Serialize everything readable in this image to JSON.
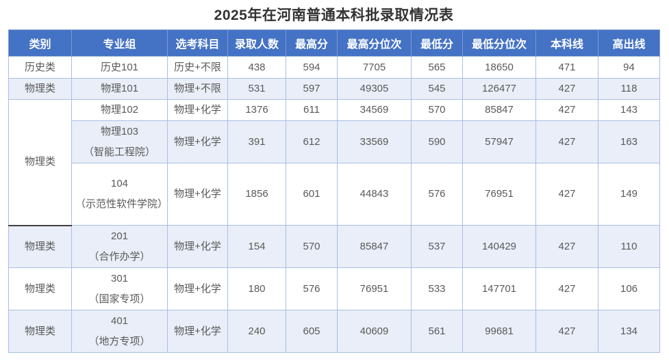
{
  "title": "2025年在河南普通本科批录取情况表",
  "colors": {
    "header_bg": "#4472C4",
    "header_text": "#FFFFFF",
    "row_alt_bg": "#E9EEF8",
    "grid_border": "#A9BEE4",
    "outer_border": "#8AA5D6",
    "body_text": "#595959",
    "title_text": "#333333",
    "merged_cell_divider": "#404040"
  },
  "table": {
    "columns": [
      "类别",
      "专业组",
      "选考科目",
      "录取人数",
      "最高分",
      "最高分位次",
      "最低分",
      "最低分位次",
      "本科线",
      "高出线"
    ],
    "rows": [
      {
        "category": "历史类",
        "category_rowspan": 1,
        "group": "历史101",
        "subjects": "历史+不限",
        "values": [
          "438",
          "594",
          "7705",
          "565",
          "18650",
          "471",
          "94"
        ]
      },
      {
        "category": "物理类",
        "category_rowspan": 1,
        "group": "物理101",
        "subjects": "物理+不限",
        "values": [
          "531",
          "597",
          "49305",
          "545",
          "126477",
          "427",
          "118"
        ]
      },
      {
        "category": "物理类",
        "category_rowspan": 3,
        "group": "物理102",
        "subjects": "物理+化学",
        "values": [
          "1376",
          "611",
          "34569",
          "570",
          "85847",
          "427",
          "143"
        ]
      },
      {
        "category": null,
        "group": "物理103\n（智能工程院）",
        "subjects": "物理+化学",
        "values": [
          "391",
          "612",
          "33569",
          "590",
          "57947",
          "427",
          "163"
        ]
      },
      {
        "category": null,
        "group": "104\n（示范性软件学院）",
        "subjects": "物理+化学",
        "values": [
          "1856",
          "601",
          "44843",
          "576",
          "76951",
          "427",
          "149"
        ]
      },
      {
        "category": "物理类",
        "category_rowspan": 1,
        "group": "201\n（合作办学）",
        "subjects": "物理+化学",
        "values": [
          "154",
          "570",
          "85847",
          "537",
          "140429",
          "427",
          "110"
        ]
      },
      {
        "category": "物理类",
        "category_rowspan": 1,
        "group": "301\n（国家专项）",
        "subjects": "物理+化学",
        "values": [
          "180",
          "576",
          "76951",
          "533",
          "147701",
          "427",
          "106"
        ]
      },
      {
        "category": "物理类",
        "category_rowspan": 1,
        "group": "401\n（地方专项）",
        "subjects": "物理+化学",
        "values": [
          "240",
          "605",
          "40609",
          "561",
          "99681",
          "427",
          "134"
        ]
      }
    ]
  }
}
